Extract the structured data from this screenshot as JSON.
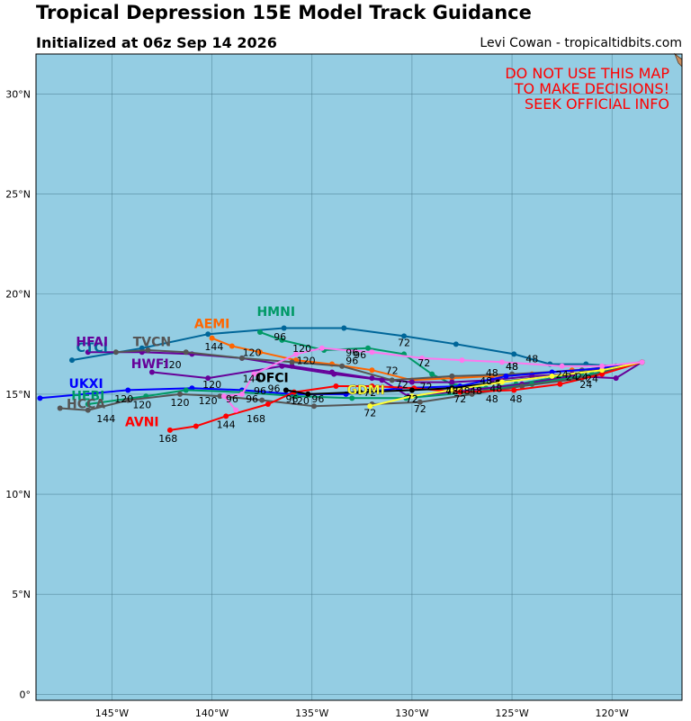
{
  "header": {
    "title": "Tropical Depression 15E Model Track Guidance",
    "subtitle": "Initialized at 06z Sep 14 2026",
    "credit": "Levi Cowan - tropicaltidbits.com"
  },
  "warning": {
    "lines": [
      "DO NOT USE THIS MAP",
      "TO MAKE DECISIONS!",
      "SEEK OFFICIAL INFO"
    ],
    "color": "#ff0000"
  },
  "colors": {
    "ocean": "#94cde3",
    "grid": "#3d6f82"
  },
  "map": {
    "lon_range": [
      -148.8,
      -116.5
    ],
    "lat_range": [
      -0.3,
      32.0
    ],
    "lon_ticks": [
      -145,
      -140,
      -135,
      -130,
      -125,
      -120
    ],
    "lat_ticks": [
      0,
      5,
      10,
      15,
      20,
      25,
      30
    ],
    "lon_tick_labels": [
      "145°W",
      "140°W",
      "135°W",
      "130°W",
      "125°W",
      "120°W"
    ],
    "lat_tick_labels": [
      "0°",
      "5°N",
      "10°N",
      "15°N",
      "20°N",
      "25°N",
      "30°N"
    ]
  },
  "chart_data": {
    "type": "line",
    "title": "Tropical Depression 15E Model Track Guidance",
    "xlabel": "",
    "ylabel": "",
    "xlim": [
      -148.8,
      -116.5
    ],
    "ylim": [
      -0.3,
      32.0
    ],
    "grid": true,
    "series": [
      {
        "name": "CTCI",
        "color": "#006699",
        "label_pos": [
          -146.0,
          17.1
        ],
        "points": [
          [
            -118.5,
            16.6
          ],
          [
            -119.8,
            16.4
          ],
          [
            -121.3,
            16.5
          ],
          [
            -123.1,
            16.5
          ],
          [
            -124.9,
            17.0
          ],
          [
            -127.8,
            17.5
          ],
          [
            -130.4,
            17.9
          ],
          [
            -133.4,
            18.3
          ],
          [
            -136.4,
            18.3
          ],
          [
            -140.2,
            18.0
          ],
          [
            -143.5,
            17.3
          ],
          [
            -147.0,
            16.7
          ]
        ],
        "hour_labels": [
          [
            -125.0,
            16.2,
            "48"
          ],
          [
            -130.4,
            17.4,
            "72"
          ],
          [
            -136.6,
            17.7,
            "96"
          ]
        ]
      },
      {
        "name": "HMNI",
        "color": "#009966",
        "label_pos": [
          -136.8,
          18.9
        ],
        "points": [
          [
            -118.5,
            16.6
          ],
          [
            -120.0,
            16.3
          ],
          [
            -121.5,
            16.1
          ],
          [
            -123.0,
            15.8
          ],
          [
            -124.8,
            15.5
          ],
          [
            -126.3,
            15.3
          ],
          [
            -128.0,
            15.5
          ],
          [
            -129.0,
            16.0
          ],
          [
            -130.4,
            17.0
          ],
          [
            -132.2,
            17.3
          ],
          [
            -134.4,
            17.2
          ],
          [
            -136.5,
            17.7
          ],
          [
            -137.6,
            18.1
          ]
        ],
        "hour_labels": [
          [
            -129.4,
            16.4,
            "72"
          ],
          [
            -132.6,
            16.8,
            "96"
          ]
        ]
      },
      {
        "name": "AEMI",
        "color": "#ff6600",
        "label_pos": [
          -140.0,
          18.3
        ],
        "points": [
          [
            -118.5,
            16.6
          ],
          [
            -120.2,
            16.3
          ],
          [
            -122.0,
            16.2
          ],
          [
            -124.0,
            16.0
          ],
          [
            -126.0,
            15.9
          ],
          [
            -128.0,
            15.8
          ],
          [
            -130.0,
            15.7
          ],
          [
            -132.0,
            16.2
          ],
          [
            -134.0,
            16.5
          ],
          [
            -135.8,
            16.7
          ],
          [
            -137.6,
            17.1
          ],
          [
            -139.0,
            17.4
          ],
          [
            -140.0,
            17.8
          ]
        ],
        "hour_labels": [
          [
            -135.5,
            17.1,
            "120"
          ],
          [
            -139.9,
            17.2,
            "144"
          ]
        ]
      },
      {
        "name": "HFAI",
        "color": "#660099",
        "label_pos": [
          -146.0,
          17.4
        ],
        "points": [
          [
            -118.5,
            16.6
          ],
          [
            -120.2,
            16.3
          ],
          [
            -122.0,
            16.0
          ],
          [
            -124.0,
            15.9
          ],
          [
            -126.0,
            15.7
          ],
          [
            -128.0,
            15.6
          ],
          [
            -130.0,
            15.6
          ],
          [
            -132.0,
            15.8
          ],
          [
            -134.0,
            16.1
          ],
          [
            -136.0,
            16.4
          ],
          [
            -138.5,
            16.8
          ],
          [
            -141.0,
            17.0
          ],
          [
            -143.5,
            17.1
          ],
          [
            -146.2,
            17.1
          ]
        ],
        "hour_labels": [
          [
            -133.0,
            16.5,
            "96"
          ],
          [
            -135.3,
            16.5,
            "120"
          ],
          [
            -142.0,
            16.3,
            "120"
          ]
        ]
      },
      {
        "name": "TVCN",
        "color": "#555555",
        "label_pos": [
          -143.0,
          17.4
        ],
        "points": [
          [
            -118.5,
            16.6
          ],
          [
            -121.5,
            16.2
          ],
          [
            -125.0,
            16.0
          ],
          [
            -128.0,
            15.9
          ],
          [
            -131.0,
            15.7
          ],
          [
            -133.5,
            16.4
          ],
          [
            -136.0,
            16.6
          ],
          [
            -138.5,
            16.8
          ],
          [
            -141.3,
            17.1
          ],
          [
            -143.2,
            17.2
          ],
          [
            -144.8,
            17.1
          ]
        ],
        "hour_labels": [
          [
            -125.0,
            16.2,
            "48"
          ],
          [
            -131.0,
            16.0,
            "72"
          ]
        ]
      },
      {
        "name": "HWFI",
        "color": "#660099",
        "label_pos": [
          -143.1,
          16.3
        ],
        "points": [
          [
            -118.5,
            16.6
          ],
          [
            -119.8,
            15.8
          ],
          [
            -122.0,
            15.9
          ],
          [
            -124.5,
            15.5
          ],
          [
            -127.0,
            15.2
          ],
          [
            -130.2,
            14.9
          ],
          [
            -131.5,
            15.7
          ],
          [
            -133.9,
            16.0
          ],
          [
            -136.5,
            16.4
          ],
          [
            -140.2,
            15.8
          ],
          [
            -143.0,
            16.1
          ]
        ],
        "hour_labels": [
          [
            -128.0,
            15.0,
            "72"
          ],
          [
            -138.0,
            16.9,
            "120"
          ]
        ]
      },
      {
        "name": "UKXI",
        "color": "#0000ff",
        "label_pos": [
          -146.3,
          15.3
        ],
        "points": [
          [
            -118.5,
            16.6
          ],
          [
            -120.5,
            16.3
          ],
          [
            -123.0,
            16.1
          ],
          [
            -125.3,
            15.9
          ],
          [
            -127.6,
            15.4
          ],
          [
            -130.6,
            15.3
          ],
          [
            -133.3,
            15.0
          ],
          [
            -136.0,
            15.0
          ],
          [
            -138.5,
            15.2
          ],
          [
            -141.0,
            15.3
          ],
          [
            -144.2,
            15.2
          ],
          [
            -148.6,
            14.8
          ]
        ],
        "hour_labels": [
          [
            -127.6,
            14.6,
            "72"
          ],
          [
            -144.4,
            14.6,
            "120"
          ]
        ]
      },
      {
        "name": "HEBI",
        "color": "#009966",
        "label_pos": [
          -146.2,
          14.7
        ],
        "points": [
          [
            -118.5,
            16.6
          ],
          [
            -121.0,
            16.0
          ],
          [
            -124.0,
            15.5
          ],
          [
            -127.0,
            15.1
          ],
          [
            -130.3,
            14.8
          ],
          [
            -133.0,
            14.8
          ],
          [
            -135.8,
            14.9
          ],
          [
            -138.5,
            15.1
          ],
          [
            -141.3,
            15.2
          ],
          [
            -143.3,
            14.9
          ],
          [
            -146.2,
            14.5
          ]
        ],
        "hour_labels": [
          [
            -143.5,
            14.3,
            "120"
          ]
        ]
      },
      {
        "name": "HCCA",
        "color": "#555555",
        "label_pos": [
          -146.3,
          14.3
        ],
        "points": [
          [
            -118.5,
            16.6
          ],
          [
            -121.5,
            15.8
          ],
          [
            -124.5,
            15.4
          ],
          [
            -127.0,
            15.0
          ],
          [
            -129.6,
            14.6
          ],
          [
            -132.0,
            14.5
          ],
          [
            -134.9,
            14.4
          ],
          [
            -137.5,
            14.7
          ],
          [
            -139.6,
            14.9
          ],
          [
            -141.6,
            15.0
          ],
          [
            -144.2,
            14.7
          ],
          [
            -146.2,
            14.2
          ],
          [
            -147.6,
            14.3
          ]
        ],
        "hour_labels": [
          [
            -129.6,
            14.1,
            "72"
          ],
          [
            -141.6,
            14.4,
            "120"
          ],
          [
            -145.3,
            13.6,
            "144"
          ]
        ]
      },
      {
        "name": "AVNI",
        "color": "#ff0000",
        "label_pos": [
          -143.5,
          13.4
        ],
        "points": [
          [
            -118.5,
            16.6
          ],
          [
            -120.5,
            16.0
          ],
          [
            -122.6,
            15.5
          ],
          [
            -124.9,
            15.2
          ],
          [
            -127.6,
            15.1
          ],
          [
            -129.9,
            15.3
          ],
          [
            -132.0,
            15.4
          ],
          [
            -133.8,
            15.4
          ],
          [
            -135.9,
            15.1
          ],
          [
            -137.2,
            14.5
          ],
          [
            -139.3,
            13.9
          ],
          [
            -140.8,
            13.4
          ],
          [
            -142.1,
            13.2
          ]
        ],
        "hour_labels": [
          [
            -124.8,
            14.6,
            "48"
          ],
          [
            -139.3,
            13.3,
            "144"
          ],
          [
            -142.2,
            12.6,
            "168"
          ],
          [
            -137.8,
            13.6,
            "168"
          ]
        ]
      },
      {
        "name": "OFCI",
        "color": "#000000",
        "label_pos": [
          -137.0,
          15.6
        ],
        "points": [
          [
            -118.5,
            16.6
          ],
          [
            -120.5,
            16.2
          ],
          [
            -123.0,
            15.9
          ],
          [
            -125.7,
            15.6
          ],
          [
            -128.0,
            15.3
          ],
          [
            -130.0,
            15.2
          ],
          [
            -132.6,
            15.1
          ],
          [
            -135.2,
            15.0
          ],
          [
            -136.3,
            15.2
          ]
        ],
        "hour_labels": [
          [
            -136.0,
            14.6,
            "96"
          ],
          [
            -130.0,
            14.6,
            "72"
          ]
        ]
      },
      {
        "name": "GDMI",
        "color": "#ffff33",
        "label_pos": [
          -132.3,
          15.0
        ],
        "points": [
          [
            -118.5,
            16.6
          ],
          [
            -120.5,
            16.2
          ],
          [
            -123.0,
            15.9
          ],
          [
            -125.5,
            15.6
          ],
          [
            -128.0,
            15.2
          ],
          [
            -130.0,
            14.9
          ],
          [
            -132.1,
            14.4
          ]
        ],
        "hour_labels": [
          [
            -132.1,
            13.9,
            "72"
          ]
        ]
      },
      {
        "name": "",
        "color": "#ff77ee",
        "label_pos": null,
        "points": [
          [
            -118.5,
            16.6
          ],
          [
            -120.5,
            16.4
          ],
          [
            -122.5,
            16.4
          ],
          [
            -125.5,
            16.6
          ],
          [
            -127.5,
            16.7
          ],
          [
            -129.5,
            16.8
          ],
          [
            -132.0,
            17.1
          ],
          [
            -134.5,
            17.3
          ],
          [
            -135.8,
            17.0
          ],
          [
            -137.9,
            16.0
          ],
          [
            -138.5,
            15.0
          ],
          [
            -139.4,
            14.9
          ],
          [
            -138.8,
            14.2
          ]
        ],
        "hour_labels": [
          [
            -124.0,
            16.6,
            "48"
          ],
          [
            -133.0,
            16.9,
            "96"
          ],
          [
            -139.0,
            14.6,
            "96"
          ],
          [
            -138.0,
            14.6,
            "96"
          ]
        ]
      }
    ]
  },
  "hour_scatter": [
    [
      -122.5,
      15.8,
      "24"
    ],
    [
      -122.0,
      15.7,
      "24"
    ],
    [
      -121.5,
      15.7,
      "24"
    ],
    [
      -121.0,
      15.6,
      "24"
    ],
    [
      -121.3,
      15.3,
      "24"
    ],
    [
      -126.0,
      15.9,
      "48"
    ],
    [
      -126.3,
      15.5,
      "48"
    ],
    [
      -126.8,
      15.0,
      "48"
    ],
    [
      -127.4,
      15.0,
      "48"
    ],
    [
      -128.0,
      15.0,
      "48"
    ],
    [
      -126.0,
      14.6,
      "48"
    ],
    [
      -125.8,
      15.1,
      "48"
    ],
    [
      -129.3,
      15.2,
      "72"
    ],
    [
      -130.5,
      15.3,
      "72"
    ],
    [
      -132.1,
      14.9,
      "72"
    ],
    [
      -130.0,
      14.6,
      "72"
    ],
    [
      -134.7,
      14.6,
      "96"
    ],
    [
      -135.6,
      14.5,
      "120"
    ],
    [
      -140.0,
      15.3,
      "120"
    ],
    [
      -136.9,
      15.1,
      "96"
    ],
    [
      -137.6,
      15.0,
      "96"
    ],
    [
      -138.0,
      15.6,
      "144"
    ],
    [
      -140.2,
      14.5,
      "120"
    ]
  ]
}
